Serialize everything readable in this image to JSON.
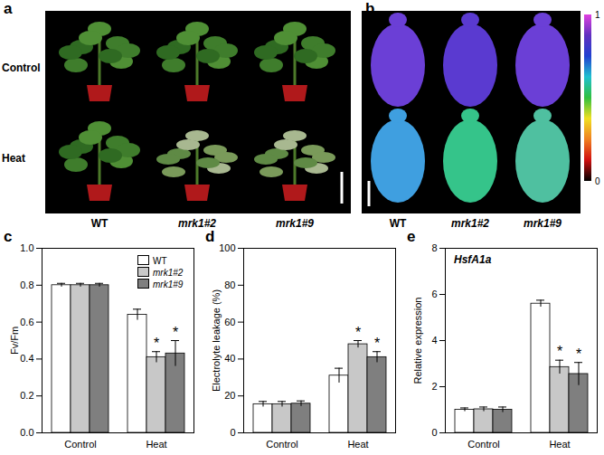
{
  "images": [
    {
      "panel": "a",
      "row_labels": [
        "Control",
        "Heat"
      ],
      "col_labels": [
        "WT",
        "mrk1#2",
        "mrk1#9"
      ]
    },
    {
      "panel": "b",
      "col_labels": [
        "WT",
        "mrk1#2",
        "mrk1#9"
      ],
      "colorbar": {
        "range": [
          0,
          1
        ],
        "ticks": [
          0,
          1
        ]
      }
    }
  ],
  "chart_data": [
    {
      "panel": "c",
      "type": "bar",
      "categories": [
        "Control",
        "Heat"
      ],
      "y_label": "Fv/Fm",
      "ylim": [
        0,
        1
      ],
      "yticks": [
        {
          "value": 0,
          "label": "0.0"
        },
        0.2,
        0.4,
        0.6,
        0.8,
        {
          "value": 1,
          "label": "1.0"
        }
      ],
      "legend": "top-right",
      "series": [
        {
          "name": "WT",
          "color": "#ffffff",
          "values": [
            0.8,
            0.64
          ],
          "errors": [
            0.01,
            0.03
          ],
          "annotations": [
            null,
            null
          ]
        },
        {
          "name": "mrk1#2",
          "color": "#c8c8c8",
          "values": [
            0.8,
            0.41
          ],
          "errors": [
            0.01,
            0.03
          ],
          "annotations": [
            null,
            "*"
          ]
        },
        {
          "name": "mrk1#9",
          "color": "#7f7f7f",
          "values": [
            0.8,
            0.43
          ],
          "errors": [
            0.01,
            0.07
          ],
          "annotations": [
            null,
            "*"
          ]
        }
      ]
    },
    {
      "panel": "d",
      "type": "bar",
      "categories": [
        "Control",
        "Heat"
      ],
      "y_label": "Electrolyte leakage (%)",
      "ylim": [
        0,
        100
      ],
      "yticks": [
        0,
        20,
        40,
        60,
        80,
        100
      ],
      "series": [
        {
          "name": "WT",
          "color": "#ffffff",
          "values": [
            15.5,
            31
          ],
          "errors": [
            1.5,
            4
          ],
          "annotations": [
            null,
            null
          ]
        },
        {
          "name": "mrk1#2",
          "color": "#c8c8c8",
          "values": [
            15.5,
            48
          ],
          "errors": [
            1.5,
            2
          ],
          "annotations": [
            null,
            "*"
          ]
        },
        {
          "name": "mrk1#9",
          "color": "#7f7f7f",
          "values": [
            15.8,
            41
          ],
          "errors": [
            1.5,
            3
          ],
          "annotations": [
            null,
            "*"
          ]
        }
      ]
    },
    {
      "panel": "e",
      "type": "bar",
      "categories": [
        "Control",
        "Heat"
      ],
      "y_label": "Relative expression",
      "annotation": "HsfA1a",
      "ylim": [
        0,
        8
      ],
      "yticks": [
        0,
        2,
        4,
        6,
        8
      ],
      "series": [
        {
          "name": "WT",
          "color": "#ffffff",
          "values": [
            1.0,
            5.6
          ],
          "errors": [
            0.08,
            0.15
          ],
          "annotations": [
            null,
            null
          ]
        },
        {
          "name": "mrk1#2",
          "color": "#c8c8c8",
          "values": [
            1.02,
            2.85
          ],
          "errors": [
            0.1,
            0.3
          ],
          "annotations": [
            null,
            "*"
          ]
        },
        {
          "name": "mrk1#9",
          "color": "#7f7f7f",
          "values": [
            1.0,
            2.55
          ],
          "errors": [
            0.12,
            0.5
          ],
          "annotations": [
            null,
            "*"
          ]
        }
      ]
    }
  ]
}
